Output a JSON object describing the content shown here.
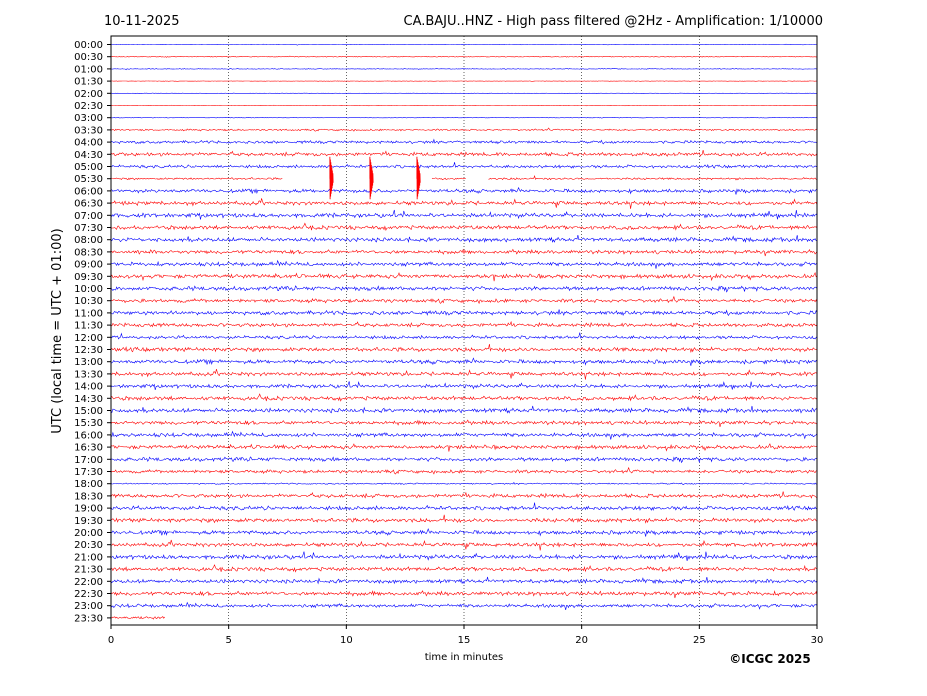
{
  "header": {
    "date": "10-11-2025",
    "title": "CA.BAJU..HNZ - High pass filtered @2Hz - Amplification: 1/10000"
  },
  "footer": {
    "copyright": "©ICGC 2025"
  },
  "chart_data": {
    "type": "line",
    "subtype": "helicorder",
    "xlabel": "time in minutes",
    "ylabel": "UTC (local time = UTC + 01:00)",
    "xlim": [
      0,
      30
    ],
    "xticks": [
      0,
      5,
      10,
      15,
      20,
      25,
      30
    ],
    "vertical_gridlines": [
      5,
      10,
      15,
      20,
      25
    ],
    "grid": "dotted vertical",
    "row_colors": [
      "#0000ff",
      "#ff0000"
    ],
    "rows": [
      "00:00",
      "00:30",
      "01:00",
      "01:30",
      "02:00",
      "02:30",
      "03:00",
      "03:30",
      "04:00",
      "04:30",
      "05:00",
      "05:30",
      "06:00",
      "06:30",
      "07:00",
      "07:30",
      "08:00",
      "08:30",
      "09:00",
      "09:30",
      "10:00",
      "10:30",
      "11:00",
      "11:30",
      "12:00",
      "12:30",
      "13:00",
      "13:30",
      "14:00",
      "14:30",
      "15:00",
      "15:30",
      "16:00",
      "16:30",
      "17:00",
      "17:30",
      "18:00",
      "18:30",
      "19:00",
      "19:30",
      "20:00",
      "20:30",
      "21:00",
      "21:30",
      "22:00",
      "22:30",
      "23:00",
      "23:30"
    ],
    "trace_end_row": "23:30",
    "trace_end_minute": 2.3,
    "noise_level": [
      0.05,
      0.08,
      0.08,
      0.05,
      0.04,
      0.04,
      0.05,
      0.18,
      0.3,
      0.4,
      0.32,
      0.22,
      0.38,
      0.42,
      0.45,
      0.42,
      0.45,
      0.42,
      0.42,
      0.45,
      0.45,
      0.38,
      0.42,
      0.42,
      0.35,
      0.45,
      0.42,
      0.42,
      0.4,
      0.42,
      0.45,
      0.42,
      0.42,
      0.42,
      0.42,
      0.35,
      0.15,
      0.42,
      0.42,
      0.45,
      0.42,
      0.42,
      0.45,
      0.42,
      0.42,
      0.45,
      0.38,
      0.3
    ],
    "gaps": [
      {
        "row": "05:30",
        "from": 7.3,
        "to": 13.6
      },
      {
        "row": "05:30",
        "from": 15.1,
        "to": 16.0
      }
    ],
    "events": [
      {
        "row": "05:30",
        "minute": 9.3,
        "amplitude_rows": 1.8
      },
      {
        "row": "05:30",
        "minute": 11.0,
        "amplitude_rows": 1.8
      },
      {
        "row": "05:30",
        "minute": 13.0,
        "amplitude_rows": 1.8
      }
    ]
  }
}
